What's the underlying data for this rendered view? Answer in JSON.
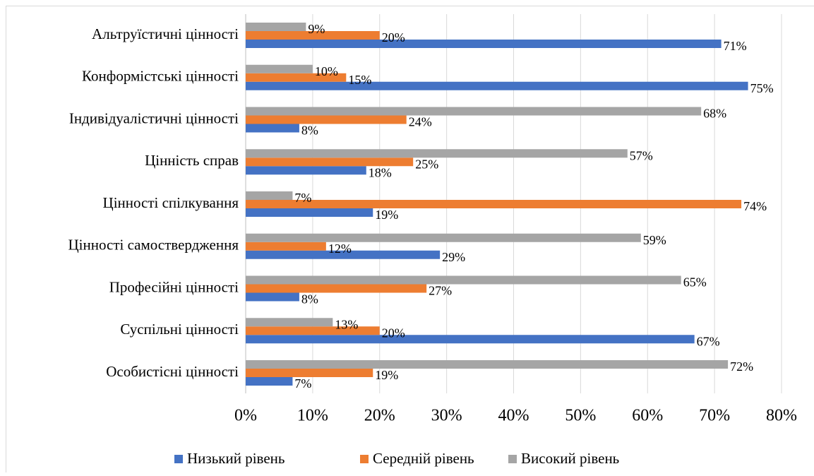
{
  "chart_data": {
    "type": "hbar",
    "categories": [
      "Альтруїстичні цінності",
      "Конформістські цінності",
      "Індивідуалістичні цінності",
      "Цінність справ",
      "Цінності спілкування",
      "Цінності самоствердження",
      "Професійні цінності",
      "Суспільні цінності",
      "Особистісні цінності"
    ],
    "series": [
      {
        "name": "Низький рівень",
        "color": "#4472c4",
        "values": [
          71,
          75,
          8,
          18,
          19,
          29,
          8,
          67,
          7
        ],
        "value_labels": [
          "71%",
          "75%",
          "8%",
          "18%",
          "19%",
          "29%",
          "8%",
          "67%",
          "7%"
        ]
      },
      {
        "name": "Середній рівень",
        "color": "#ed7d31",
        "values": [
          20,
          15,
          24,
          25,
          74,
          12,
          27,
          20,
          19
        ],
        "value_labels": [
          "20%",
          "15%",
          "24%",
          "25%",
          "74%",
          "12%",
          "27%",
          "20%",
          "19%"
        ]
      },
      {
        "name": "Високий рівень",
        "color": "#a5a5a5",
        "values": [
          9,
          10,
          68,
          57,
          7,
          59,
          65,
          13,
          72
        ],
        "value_labels": [
          "9%",
          "10%",
          "68%",
          "57%",
          "7%",
          "59%",
          "65%",
          "13%",
          "72%"
        ]
      }
    ],
    "xlim": [
      0,
      80
    ],
    "xticks": [
      {
        "value": 0,
        "label": "0%"
      },
      {
        "value": 10,
        "label": "10%"
      },
      {
        "value": 20,
        "label": "20%"
      },
      {
        "value": 30,
        "label": "30%"
      },
      {
        "value": 40,
        "label": "40%"
      },
      {
        "value": 50,
        "label": "50%"
      },
      {
        "value": 60,
        "label": "60%"
      },
      {
        "value": 70,
        "label": "70%"
      },
      {
        "value": 80,
        "label": "80%"
      }
    ],
    "grid": true,
    "legend": "bottom"
  }
}
